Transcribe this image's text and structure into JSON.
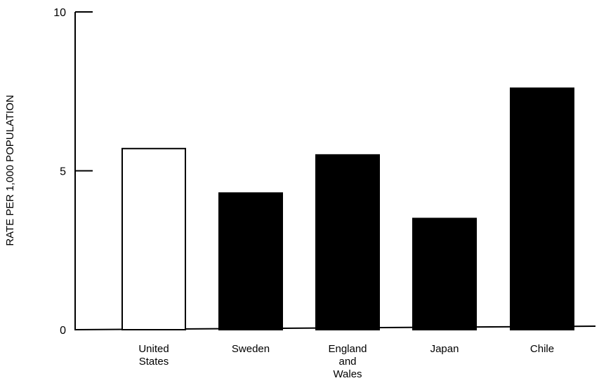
{
  "chart_data": {
    "type": "bar",
    "categories": [
      "United States",
      "Sweden",
      "England and Wales",
      "Japan",
      "Chile"
    ],
    "category_label_lines": [
      [
        "United",
        "States"
      ],
      [
        "Sweden"
      ],
      [
        "England",
        "and",
        "Wales"
      ],
      [
        "Japan"
      ],
      [
        "Chile"
      ]
    ],
    "values": [
      5.7,
      4.3,
      5.5,
      3.5,
      7.6
    ],
    "bar_fill": [
      "#ffffff",
      "#000000",
      "#000000",
      "#000000",
      "#000000"
    ],
    "bar_stroke": "#000000",
    "ylabel": "RATE PER 1,000 POPULATION",
    "ylim": [
      0,
      10
    ],
    "yticks": [
      0,
      5,
      10
    ],
    "grid": false
  }
}
